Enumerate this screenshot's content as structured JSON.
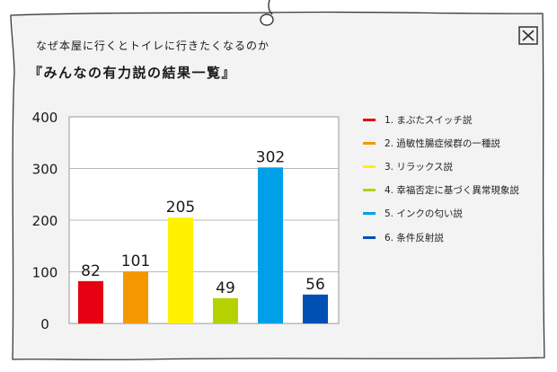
{
  "header": {
    "subtitle": "なぜ本屋に行くとトイレに行きたくなるのか",
    "title": "『みんなの有力説の結果一覧』"
  },
  "close_icon": "close-icon",
  "colors": {
    "paper": "#f3f3f3",
    "border": "#3a3a3a",
    "grid": "#b8b8b8"
  },
  "chart_data": {
    "type": "bar",
    "categories": [
      "1. まぶたスイッチ説",
      "2. 過敏性腸症候群の一種説",
      "3. リラックス説",
      "4. 幸福否定に基づく異常現象説",
      "5. インクの匂い説",
      "6. 条件反射説"
    ],
    "values": [
      82,
      101,
      205,
      49,
      302,
      56
    ],
    "colors": [
      "#e60012",
      "#f39800",
      "#fff100",
      "#b5d100",
      "#00a0e9",
      "#0050b4"
    ],
    "yticks": [
      "400",
      "300",
      "200",
      "100",
      "0"
    ],
    "ylim": [
      0,
      400
    ],
    "grid": true,
    "legend": "right",
    "title": "",
    "xlabel": "",
    "ylabel": ""
  }
}
